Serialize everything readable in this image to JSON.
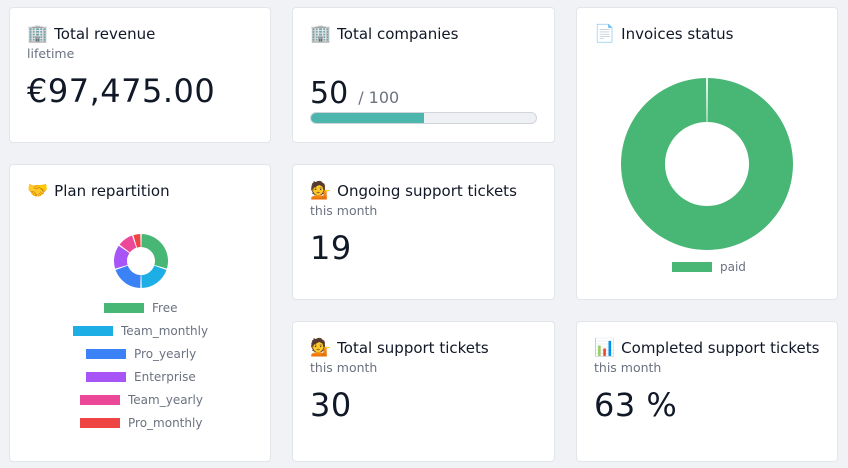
{
  "cards": {
    "total_revenue": {
      "emoji": "🏢",
      "title": "Total revenue",
      "sub": "lifetime",
      "value": "€97,475.00"
    },
    "total_companies": {
      "emoji": "🏢",
      "title": "Total companies",
      "value": "50",
      "max": "/ 100",
      "progress": 0.5,
      "bar_color": "#4db6ac"
    },
    "invoices_status": {
      "emoji": "📄",
      "title": "Invoices status",
      "legend_label": "paid",
      "color": "#48b675"
    },
    "plan_repartition": {
      "emoji": "🤝",
      "title": "Plan repartition"
    },
    "ongoing_tickets": {
      "emoji": "💁",
      "title": "Ongoing support tickets",
      "sub": "this month",
      "value": "19"
    },
    "total_tickets": {
      "emoji": "💁",
      "title": "Total support tickets",
      "sub": "this month",
      "value": "30"
    },
    "completed_tickets": {
      "emoji": "📊",
      "title": "Completed support tickets",
      "sub": "this month",
      "value": "63 %"
    }
  },
  "chart_data": [
    {
      "type": "pie",
      "variant": "doughnut",
      "categories": [
        "paid"
      ],
      "values": [
        100
      ],
      "colors": [
        "#48b675"
      ],
      "legend": "bottom"
    },
    {
      "type": "pie",
      "variant": "doughnut",
      "categories": [
        "Free",
        "Team_monthly",
        "Pro_yearly",
        "Enterprise",
        "Team_yearly",
        "Pro_monthly"
      ],
      "values": [
        30,
        20,
        20,
        15,
        10,
        5
      ],
      "colors": [
        "#48b675",
        "#1eaee6",
        "#3b82f6",
        "#a855f7",
        "#ec4899",
        "#ef4444"
      ],
      "legend": "bottom"
    }
  ]
}
